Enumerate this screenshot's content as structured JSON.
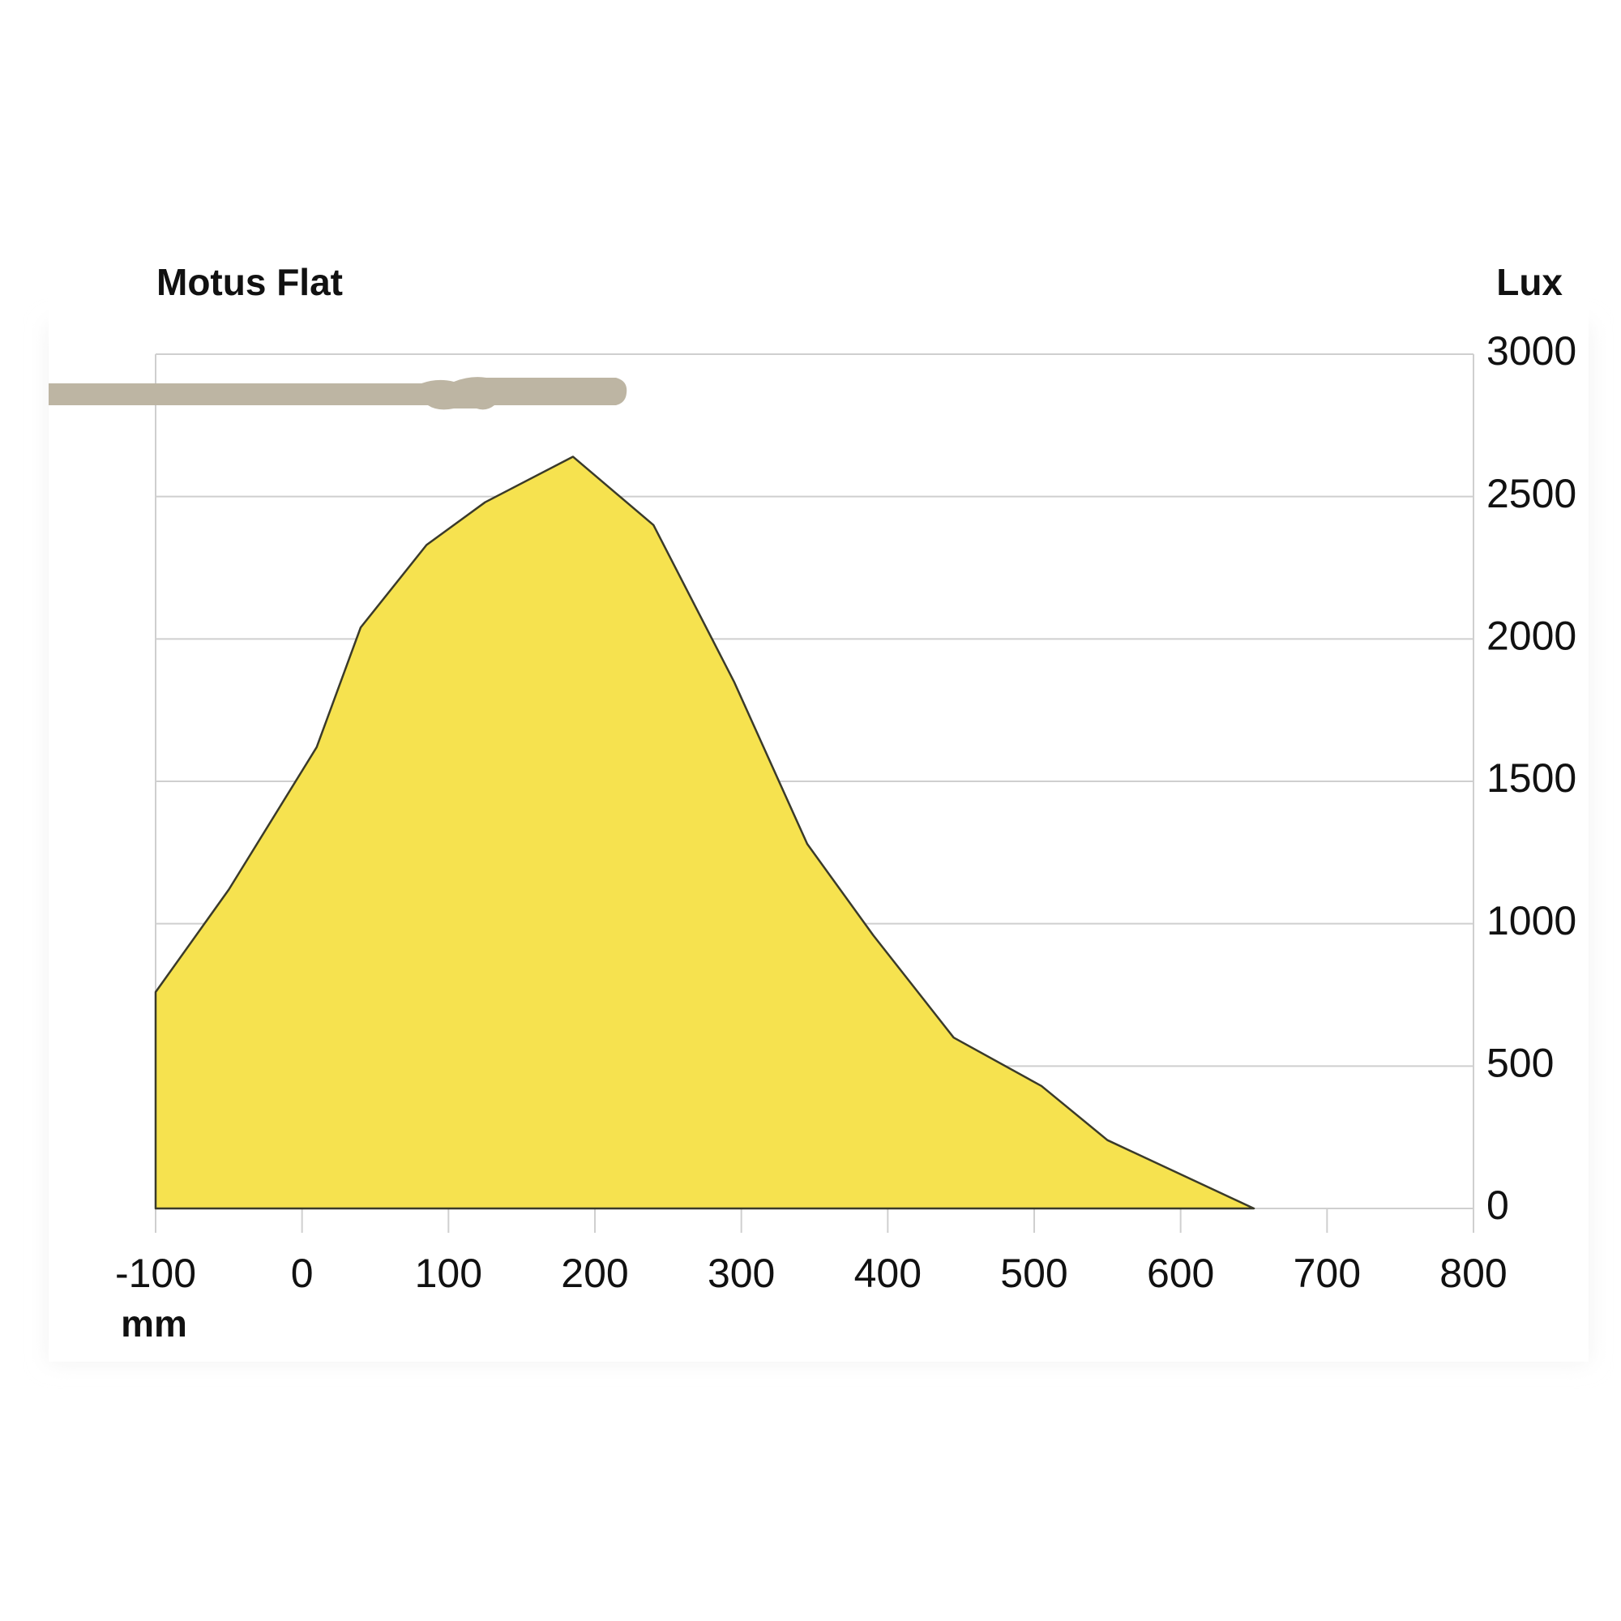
{
  "chart_data": {
    "type": "area",
    "title": "Motus Flat",
    "y_label": "Lux",
    "x_label": "mm",
    "x": [
      -100,
      -50,
      10,
      40,
      85,
      125,
      185,
      240,
      295,
      345,
      390,
      445,
      505,
      550,
      650
    ],
    "values": [
      760,
      1120,
      1620,
      2040,
      2330,
      2480,
      2640,
      2400,
      1850,
      1280,
      960,
      600,
      430,
      240,
      0
    ],
    "color": "#f6e24f",
    "xlim": [
      -100,
      800
    ],
    "xticks": [
      -100,
      0,
      100,
      200,
      300,
      400,
      500,
      600,
      700,
      800
    ],
    "ylim": [
      0,
      3000
    ],
    "yticks": [
      0,
      500,
      1000,
      1500,
      2000,
      2500,
      3000
    ],
    "grid": true
  }
}
